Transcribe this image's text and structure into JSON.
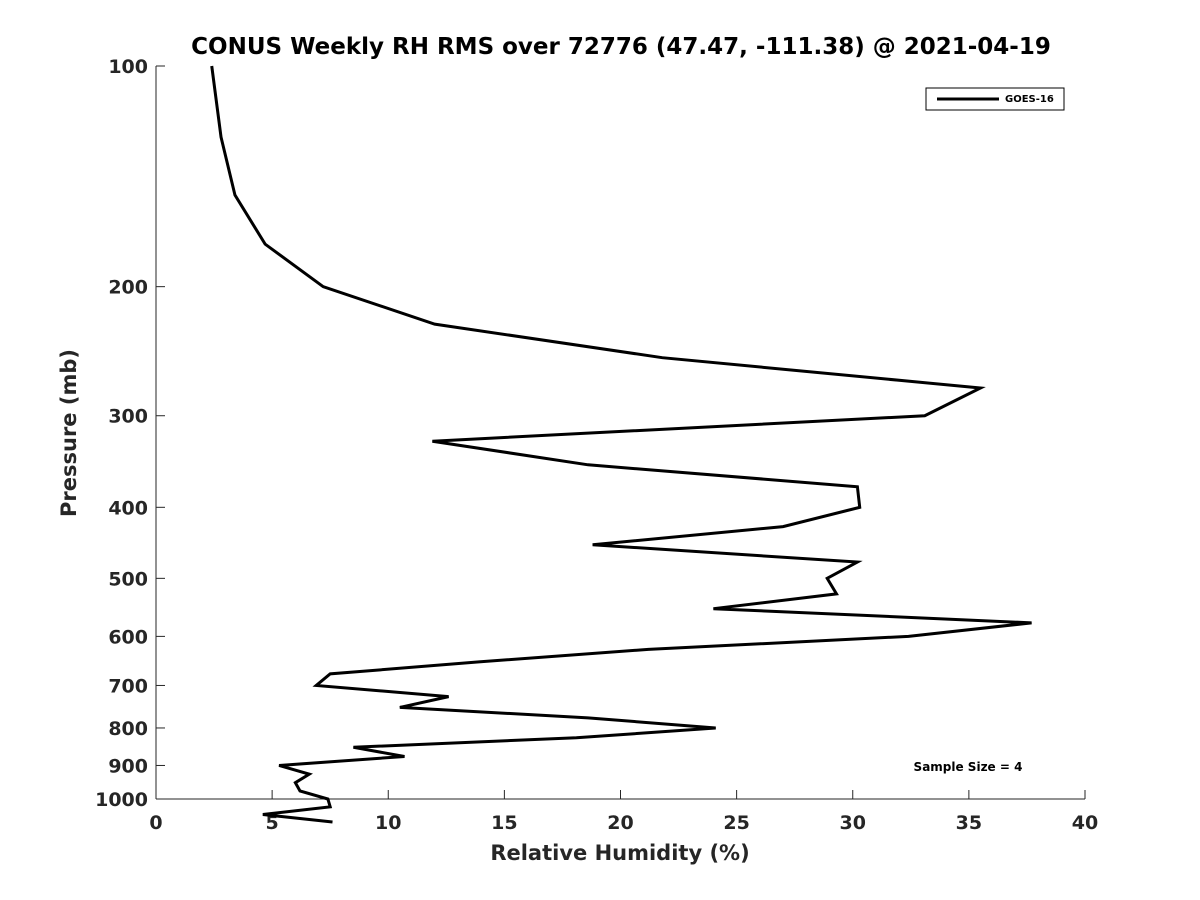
{
  "chart_data": {
    "type": "line",
    "title": "CONUS Weekly RH RMS over 72776 (47.47, -111.38) @ 2021-04-19",
    "xlabel": "Relative Humidity (%)",
    "ylabel": "Pressure (mb)",
    "xlim": [
      0,
      40
    ],
    "ylim": [
      1000,
      100
    ],
    "y_scale": "log",
    "y_reversed": true,
    "x_ticks": [
      "0",
      "5",
      "10",
      "15",
      "20",
      "25",
      "30",
      "35",
      "40"
    ],
    "y_ticks": [
      "100",
      "200",
      "300",
      "400",
      "500",
      "600",
      "700",
      "800",
      "900",
      "1000"
    ],
    "grid": false,
    "legend_position": "top-right",
    "annotation": "Sample Size = 4",
    "colors": {
      "series": "#000000",
      "axes": "#262626"
    },
    "series": [
      {
        "name": "GOES-16",
        "points": [
          [
            2.4,
            100
          ],
          [
            2.8,
            125
          ],
          [
            3.4,
            150
          ],
          [
            4.7,
            175
          ],
          [
            7.2,
            200
          ],
          [
            12.0,
            225
          ],
          [
            21.8,
            250
          ],
          [
            35.5,
            275
          ],
          [
            33.1,
            300
          ],
          [
            11.9,
            325
          ],
          [
            18.6,
            350
          ],
          [
            30.2,
            375
          ],
          [
            30.3,
            400
          ],
          [
            27.0,
            425
          ],
          [
            18.8,
            450
          ],
          [
            30.2,
            475
          ],
          [
            28.9,
            500
          ],
          [
            29.3,
            525
          ],
          [
            24.0,
            550
          ],
          [
            37.7,
            575
          ],
          [
            32.4,
            600
          ],
          [
            21.2,
            625
          ],
          [
            13.9,
            650
          ],
          [
            7.5,
            675
          ],
          [
            6.9,
            700
          ],
          [
            12.6,
            725
          ],
          [
            10.5,
            750
          ],
          [
            18.6,
            775
          ],
          [
            24.1,
            800
          ],
          [
            18.1,
            825
          ],
          [
            8.5,
            850
          ],
          [
            10.7,
            875
          ],
          [
            5.3,
            900
          ],
          [
            6.6,
            925
          ],
          [
            6.0,
            950
          ],
          [
            6.2,
            975
          ],
          [
            7.4,
            1000
          ],
          [
            7.5,
            1025
          ],
          [
            4.6,
            1050
          ],
          [
            7.6,
            1075
          ]
        ]
      }
    ]
  }
}
